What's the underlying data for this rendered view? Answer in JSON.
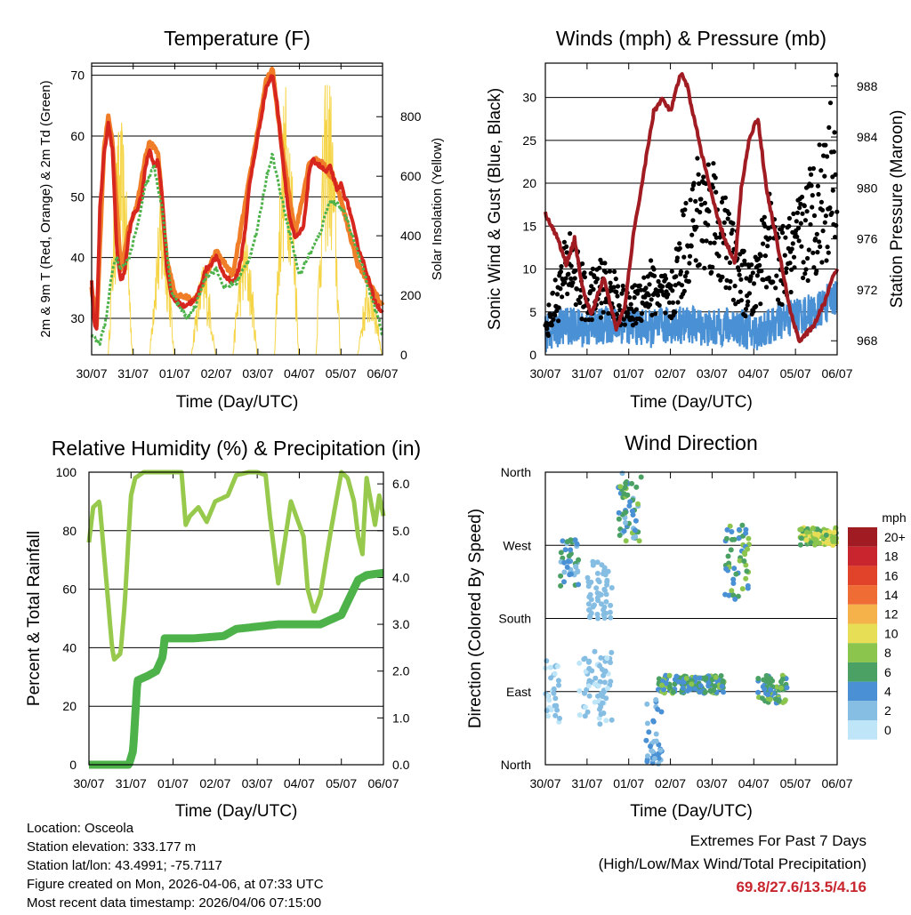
{
  "chart_data": [
    {
      "type": "line",
      "title": "Temperature (F)",
      "xlabel": "Time (Day/UTC)",
      "ylabel": "2m & 9m T (Red, Orange) & 2m Td (Green)",
      "ylabel_right": "Solar Insolation (Yellow)",
      "x_ticks": [
        "30/07",
        "31/07",
        "01/07",
        "02/07",
        "03/07",
        "04/07",
        "05/07",
        "06/07"
      ],
      "ylim": [
        24,
        72
      ],
      "y_ticks": [
        30,
        40,
        50,
        60,
        70
      ],
      "ylim_right": [
        0,
        980
      ],
      "y_ticks_right": [
        0,
        200,
        400,
        600,
        800
      ],
      "grid": true,
      "series": [
        {
          "name": "2m T",
          "color": "#d7261e",
          "x": [
            0,
            0.05,
            0.12,
            0.2,
            0.3,
            0.4,
            0.5,
            0.6,
            0.7,
            0.8,
            0.9,
            1.0,
            1.1,
            1.2,
            1.3,
            1.4,
            1.5,
            1.6,
            1.7,
            1.8,
            1.9,
            2.0,
            2.2,
            2.5,
            2.75,
            3.0,
            3.2,
            3.4,
            3.5,
            3.6,
            3.7,
            3.8,
            4.0,
            4.2,
            4.35,
            4.45,
            4.6,
            4.75,
            4.9,
            5.1,
            5.25,
            5.35,
            5.5,
            5.65,
            5.75,
            5.9,
            6.0,
            6.2,
            6.4,
            6.6,
            6.8,
            7.0
          ],
          "values": [
            36,
            30,
            28,
            48,
            57,
            62,
            58,
            42,
            36,
            38,
            44,
            47,
            48,
            50,
            55,
            58,
            55,
            56,
            50,
            39,
            34,
            33,
            32,
            33,
            38,
            40,
            37,
            36,
            37,
            40,
            45,
            52,
            60,
            68,
            70,
            66,
            56,
            47,
            43,
            45,
            55,
            56,
            55,
            54,
            55,
            51,
            52,
            48,
            42,
            38,
            33,
            31
          ]
        },
        {
          "name": "9m T",
          "color": "#f07d28",
          "x": [
            0,
            0.12,
            0.3,
            0.4,
            0.5,
            0.7,
            0.9,
            1.1,
            1.3,
            1.4,
            1.6,
            1.8,
            2.0,
            2.5,
            3.0,
            3.4,
            3.8,
            4.2,
            4.35,
            4.6,
            4.9,
            5.25,
            5.5,
            5.9,
            6.4,
            7.0
          ],
          "values": [
            35,
            29,
            58,
            63,
            59,
            38,
            45,
            49,
            57,
            59,
            57,
            40,
            34,
            33,
            41,
            37,
            53,
            69,
            71,
            57,
            44,
            56,
            56,
            52,
            39,
            32
          ]
        },
        {
          "name": "2m Td",
          "color": "#4db24a",
          "x": [
            0,
            0.2,
            0.35,
            0.5,
            0.6,
            0.7,
            0.9,
            1.1,
            1.3,
            1.5,
            1.7,
            1.9,
            2.1,
            2.3,
            2.5,
            2.75,
            3.0,
            3.2,
            3.5,
            3.8,
            4.0,
            4.2,
            4.35,
            4.5,
            4.8,
            5.0,
            5.2,
            5.5,
            5.7,
            5.9,
            6.1,
            6.3,
            6.5,
            6.7,
            6.9,
            7.0
          ],
          "values": [
            27,
            26,
            30,
            38,
            40,
            38,
            40,
            45,
            52,
            55,
            48,
            35,
            32,
            30,
            32,
            37,
            38,
            35,
            36,
            40,
            45,
            53,
            57,
            52,
            43,
            37,
            40,
            44,
            49,
            49,
            47,
            43,
            39,
            34,
            30,
            27
          ]
        },
        {
          "name": "Solar Insolation",
          "axis": "right",
          "color": "#f5d547",
          "days": [
            0,
            1,
            2,
            3,
            4,
            5,
            6
          ],
          "peaks": [
            800,
            520,
            310,
            420,
            930,
            980,
            260
          ]
        }
      ]
    },
    {
      "type": "scatter",
      "title": "Winds (mph) & Pressure (mb)",
      "xlabel": "Time (Day/UTC)",
      "ylabel": "Sonic Wind & Gust (Blue, Black)",
      "ylabel_right": "Station Pressure (Maroon)",
      "x_ticks": [
        "30/07",
        "31/07",
        "01/07",
        "02/07",
        "03/07",
        "04/07",
        "05/07",
        "06/07"
      ],
      "ylim": [
        0,
        34
      ],
      "y_ticks": [
        0,
        5,
        10,
        15,
        20,
        25,
        30
      ],
      "ylim_right": [
        966.9,
        989.8
      ],
      "y_ticks_right": [
        968,
        972,
        976,
        980,
        984,
        988
      ],
      "grid": true,
      "series": [
        {
          "name": "Wind",
          "color": "#4a90d4",
          "x": [
            0,
            0.5,
            1.0,
            1.5,
            2.0,
            2.5,
            3.0,
            3.5,
            4.0,
            4.5,
            5.0,
            5.5,
            6.0,
            6.5,
            7.0
          ],
          "values": [
            2.5,
            3.5,
            3,
            3.5,
            3.5,
            3,
            3.5,
            3.5,
            3,
            3.5,
            2.5,
            3.5,
            4.5,
            5,
            7
          ]
        },
        {
          "name": "Gust",
          "color": "#000000",
          "x": [
            0,
            0.3,
            0.6,
            1.0,
            1.3,
            1.6,
            2.0,
            2.5,
            3.0,
            3.3,
            3.6,
            4.0,
            4.2,
            4.5,
            4.8,
            5.0,
            5.3,
            5.6,
            6.0,
            6.4,
            6.8,
            7.0
          ],
          "values": [
            3,
            7,
            11,
            6,
            8,
            7,
            5,
            8,
            6,
            12,
            16,
            17,
            14,
            11,
            8,
            7,
            14,
            10,
            12,
            16,
            20,
            24
          ]
        },
        {
          "name": "Station Pressure",
          "axis": "right",
          "color": "#a01c22",
          "x": [
            0,
            0.3,
            0.5,
            0.7,
            0.9,
            1.1,
            1.4,
            1.7,
            1.9,
            2.1,
            2.3,
            2.6,
            2.8,
            3.0,
            3.25,
            3.4,
            3.6,
            3.8,
            4.1,
            4.3,
            4.55,
            4.7,
            4.9,
            5.1,
            5.3,
            5.6,
            5.9,
            6.1,
            6.4,
            6.7,
            6.9,
            7.0
          ],
          "values": [
            978,
            976,
            974,
            976,
            972,
            970,
            973,
            969,
            970.5,
            976,
            980,
            986,
            987,
            986,
            989,
            988,
            985,
            982,
            978,
            976,
            974,
            980,
            984,
            985.5,
            980,
            975,
            970,
            968,
            969,
            971,
            973,
            973.5
          ]
        }
      ]
    },
    {
      "type": "line",
      "title": "Relative Humidity (%) & Precipitation (in)",
      "xlabel": "Time (Day/UTC)",
      "ylabel": "Percent & Total Rainfall",
      "x_ticks": [
        "30/07",
        "31/07",
        "01/07",
        "02/07",
        "03/07",
        "04/07",
        "05/07",
        "06/07"
      ],
      "ylim": [
        0,
        100
      ],
      "y_ticks": [
        0,
        20,
        40,
        60,
        80,
        100
      ],
      "ylim_right": [
        0,
        6.25
      ],
      "y_ticks_right": [
        "0.0",
        "1.0",
        "2.0",
        "3.0",
        "4.0",
        "5.0",
        "6.0"
      ],
      "grid": true,
      "series": [
        {
          "name": "Relative Humidity",
          "color": "#97c94d",
          "x": [
            0,
            0.1,
            0.25,
            0.4,
            0.55,
            0.6,
            0.75,
            0.85,
            0.95,
            1.0,
            1.1,
            1.3,
            1.5,
            2.2,
            2.3,
            2.4,
            2.6,
            2.8,
            3.0,
            3.3,
            3.5,
            3.8,
            4.0,
            4.2,
            4.3,
            4.5,
            4.8,
            5.1,
            5.2,
            5.35,
            5.5,
            5.75,
            6.0,
            6.15,
            6.3,
            6.4,
            6.5,
            6.6,
            6.7,
            6.8,
            6.9,
            7.0
          ],
          "values": [
            76,
            88,
            90,
            65,
            40,
            36,
            38,
            55,
            80,
            92,
            98,
            100,
            100,
            100,
            82,
            85,
            88,
            83,
            90,
            92,
            99,
            100,
            100,
            99,
            85,
            62,
            90,
            78,
            60,
            52,
            58,
            80,
            100,
            98,
            90,
            78,
            72,
            98,
            90,
            82,
            92,
            85
          ]
        },
        {
          "name": "Total Rainfall",
          "axis": "right",
          "color": "#4db24a",
          "x": [
            0,
            0.95,
            1.05,
            1.15,
            1.4,
            1.6,
            1.75,
            1.8,
            2.0,
            2.5,
            3.2,
            3.5,
            4.0,
            4.5,
            5.0,
            5.5,
            6.0,
            6.4,
            6.6,
            7.0
          ],
          "values": [
            0,
            0,
            0.3,
            1.8,
            1.9,
            2.0,
            2.3,
            2.7,
            2.7,
            2.7,
            2.75,
            2.9,
            2.95,
            3.0,
            3.0,
            3.0,
            3.2,
            3.95,
            4.05,
            4.1
          ]
        }
      ]
    },
    {
      "type": "scatter",
      "title": "Wind Direction",
      "xlabel": "Time (Day/UTC)",
      "ylabel": "Direction (Colored By Speed)",
      "x_ticks": [
        "30/07",
        "31/07",
        "01/07",
        "02/07",
        "03/07",
        "04/07",
        "05/07",
        "06/07"
      ],
      "y_ticks": [
        "North",
        "East",
        "South",
        "West",
        "North"
      ],
      "ylim": [
        0,
        360
      ],
      "grid": true,
      "colorbar_title": "mph",
      "colorbar_labels": [
        "0",
        "2",
        "4",
        "6",
        "8",
        "10",
        "12",
        "14",
        "16",
        "18",
        "20+"
      ],
      "colorbar_colors": [
        "#bfe6f8",
        "#86bde3",
        "#4a90d4",
        "#4aa163",
        "#8cc54d",
        "#e8de55",
        "#f5b24a",
        "#f06c35",
        "#e04329",
        "#c8252e",
        "#a01c22"
      ],
      "clusters": [
        {
          "x": [
            0,
            0.35
          ],
          "direction": [
            50,
            130
          ],
          "speed": [
            0,
            2
          ]
        },
        {
          "x": [
            0.35,
            0.8
          ],
          "direction": [
            220,
            280
          ],
          "speed": [
            2,
            6
          ]
        },
        {
          "x": [
            0.8,
            1.6
          ],
          "direction": [
            50,
            140
          ],
          "speed": [
            0,
            3
          ]
        },
        {
          "x": [
            1.0,
            1.6
          ],
          "direction": [
            180,
            250
          ],
          "speed": [
            1,
            3
          ]
        },
        {
          "x": [
            1.7,
            2.3
          ],
          "direction": [
            275,
            360
          ],
          "speed": [
            2,
            8
          ]
        },
        {
          "x": [
            2.4,
            2.8
          ],
          "direction": [
            0,
            80
          ],
          "speed": [
            2,
            4
          ]
        },
        {
          "x": [
            2.7,
            4.3
          ],
          "direction": [
            88,
            110
          ],
          "speed": [
            3,
            8
          ]
        },
        {
          "x": [
            4.3,
            4.9
          ],
          "direction": [
            200,
            295
          ],
          "speed": [
            3,
            9
          ]
        },
        {
          "x": [
            5.1,
            5.8
          ],
          "direction": [
            75,
            110
          ],
          "speed": [
            3,
            8
          ]
        },
        {
          "x": [
            6.1,
            7.0
          ],
          "direction": [
            270,
            292
          ],
          "speed": [
            6,
            11
          ]
        }
      ]
    }
  ],
  "info": {
    "location": "Location: Osceola",
    "elevation": "Station elevation: 333.177 m",
    "latlon": "Station lat/lon: 43.4991; -75.7117",
    "created": "Figure created on Mon, 2026-04-06, at 07:33 UTC",
    "latest": "Most recent data timestamp: 2026/04/06 07:15:00"
  },
  "extremes": {
    "title": "Extremes For Past 7 Days",
    "subtitle": "(High/Low/Max Wind/Total Precipitation)",
    "values": "69.8/27.6/13.5/4.16"
  }
}
